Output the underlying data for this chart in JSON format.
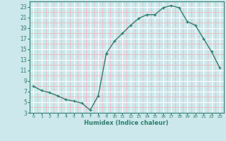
{
  "x": [
    0,
    1,
    2,
    3,
    4,
    5,
    6,
    7,
    8,
    9,
    10,
    11,
    12,
    13,
    14,
    15,
    16,
    17,
    18,
    19,
    20,
    21,
    22,
    23
  ],
  "y": [
    8,
    7.2,
    6.8,
    6.2,
    5.5,
    5.2,
    4.8,
    3.5,
    6.2,
    14.2,
    16.5,
    18.0,
    19.5,
    20.8,
    21.5,
    21.5,
    22.8,
    23.2,
    22.8,
    20.2,
    19.5,
    17.0,
    14.5,
    11.5
  ],
  "xlim": [
    -0.5,
    23.5
  ],
  "ylim": [
    3,
    24
  ],
  "yticks": [
    3,
    5,
    7,
    9,
    11,
    13,
    15,
    17,
    19,
    21,
    23
  ],
  "xticks": [
    0,
    1,
    2,
    3,
    4,
    5,
    6,
    7,
    8,
    9,
    10,
    11,
    12,
    13,
    14,
    15,
    16,
    17,
    18,
    19,
    20,
    21,
    22,
    23
  ],
  "xlabel": "Humidex (Indice chaleur)",
  "line_color": "#2e7d6e",
  "marker": "+",
  "bg_color": "#cce8ec",
  "grid_major_color": "#ffffff",
  "grid_minor_color": "#f0b8b8",
  "tick_color": "#2e7d6e",
  "spine_color": "#2e7d6e"
}
